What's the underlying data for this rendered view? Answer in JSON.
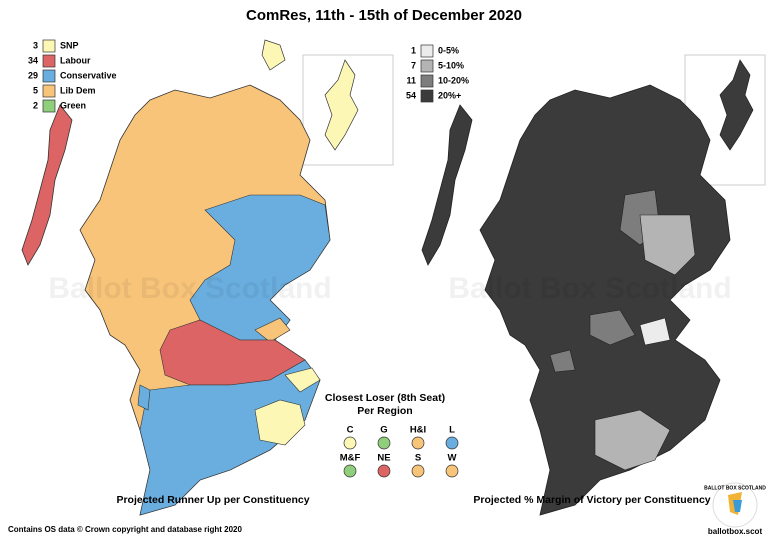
{
  "title": "ComRes, 11th - 15th of December 2020",
  "runner_up_legend": [
    {
      "count": 3,
      "label": "SNP",
      "color": "#fdf7b6"
    },
    {
      "count": 34,
      "label": "Labour",
      "color": "#dc6464"
    },
    {
      "count": 29,
      "label": "Conservative",
      "color": "#6aaedf"
    },
    {
      "count": 5,
      "label": "Lib Dem",
      "color": "#f7c47a"
    },
    {
      "count": 2,
      "label": "Green",
      "color": "#8fcf7c"
    }
  ],
  "margin_legend": [
    {
      "count": 1,
      "label": "0-5%",
      "color": "#ececec"
    },
    {
      "count": 7,
      "label": "5-10%",
      "color": "#b4b4b4"
    },
    {
      "count": 11,
      "label": "10-20%",
      "color": "#7d7d7d"
    },
    {
      "count": 54,
      "label": "20%+",
      "color": "#3b3b3b"
    }
  ],
  "closest_loser": {
    "title_line1": "Closest Loser (8th Seat)",
    "title_line2": "Per Region",
    "regions": [
      {
        "label": "C",
        "color": "#fdf7b6"
      },
      {
        "label": "G",
        "color": "#8fcf7c"
      },
      {
        "label": "H&I",
        "color": "#f7c47a"
      },
      {
        "label": "L",
        "color": "#6aaedf"
      },
      {
        "label": "M&F",
        "color": "#8fcf7c"
      },
      {
        "label": "NE",
        "color": "#dc6464"
      },
      {
        "label": "S",
        "color": "#f7c47a"
      },
      {
        "label": "W",
        "color": "#f7c47a"
      }
    ]
  },
  "left_caption": "Projected Runner Up per Constituency",
  "right_caption": "Projected % Margin of Victory per Constituency",
  "footer": "Contains OS data © Crown copyright and database right 2020",
  "watermark": "Ballot Box Scotland",
  "logo_text": "BALLOT BOX SCOTLAND",
  "website": "ballotbox.scot"
}
